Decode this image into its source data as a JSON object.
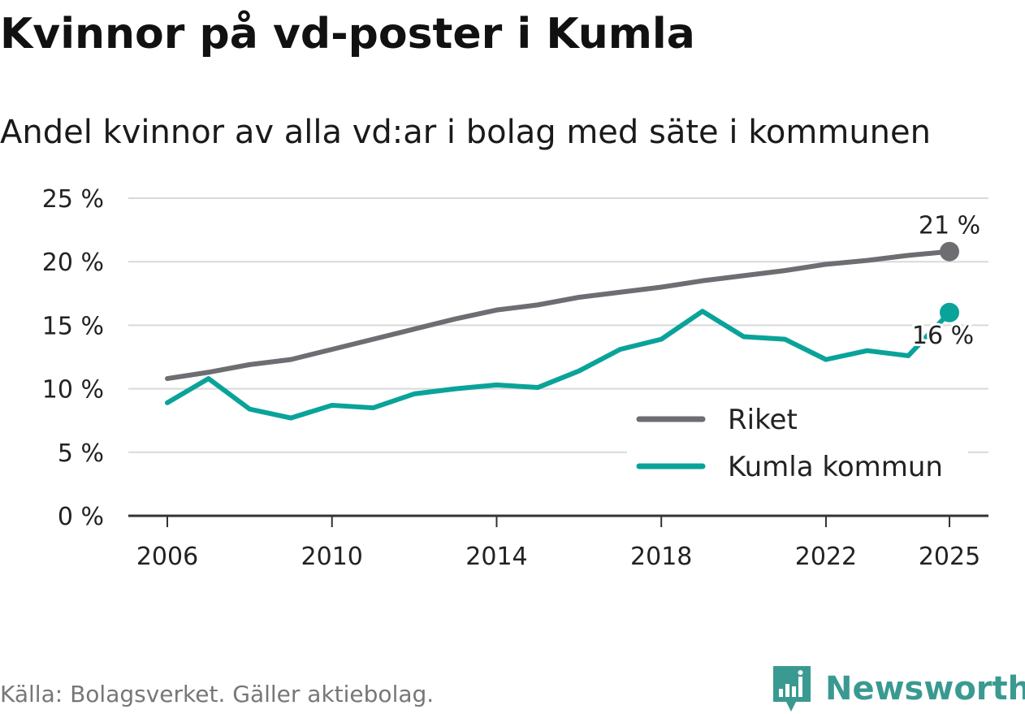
{
  "title": "Kvinnor på vd-poster i Kumla",
  "subtitle": "Andel kvinnor av alla vd:ar i bolag med säte i kommunen",
  "source": "Källa: Bolagsverket. Gäller aktiebolag.",
  "brand": "Newsworthy",
  "colors": {
    "riket": "#6d6d72",
    "kumla": "#0aa39a",
    "grid": "#d9d9d9",
    "axis": "#333333",
    "brand": "#3a9a92"
  },
  "chart_data": {
    "type": "line",
    "title": "Kvinnor på vd-poster i Kumla",
    "xlabel": "",
    "ylabel": "",
    "ylim": [
      0,
      25
    ],
    "xlim": [
      2006,
      2025
    ],
    "yticks": [
      0,
      5,
      10,
      15,
      20,
      25
    ],
    "ytick_labels": [
      "0 %",
      "5 %",
      "10 %",
      "15 %",
      "20 %",
      "25 %"
    ],
    "xticks": [
      2006,
      2010,
      2014,
      2018,
      2022,
      2025
    ],
    "xtick_labels": [
      "2006",
      "2010",
      "2014",
      "2018",
      "2022",
      "2025"
    ],
    "x": [
      2006,
      2007,
      2008,
      2009,
      2010,
      2011,
      2012,
      2013,
      2014,
      2015,
      2016,
      2017,
      2018,
      2019,
      2020,
      2021,
      2022,
      2023,
      2024,
      2025
    ],
    "series": [
      {
        "name": "Riket",
        "color": "#6d6d72",
        "values": [
          10.8,
          11.3,
          11.9,
          12.3,
          13.1,
          13.9,
          14.7,
          15.5,
          16.2,
          16.6,
          17.2,
          17.6,
          18.0,
          18.5,
          18.9,
          19.3,
          19.8,
          20.1,
          20.5,
          20.8
        ],
        "end_label": "21 %"
      },
      {
        "name": "Kumla kommun",
        "color": "#0aa39a",
        "values": [
          8.9,
          10.8,
          8.4,
          7.7,
          8.7,
          8.5,
          9.6,
          10.0,
          10.3,
          10.1,
          11.4,
          13.1,
          13.9,
          16.1,
          14.1,
          13.9,
          12.3,
          13.0,
          12.6,
          16.0
        ],
        "end_label": "16 %"
      }
    ],
    "legend": {
      "placement": "bottom-right",
      "entries": [
        "Riket",
        "Kumla kommun"
      ]
    }
  }
}
